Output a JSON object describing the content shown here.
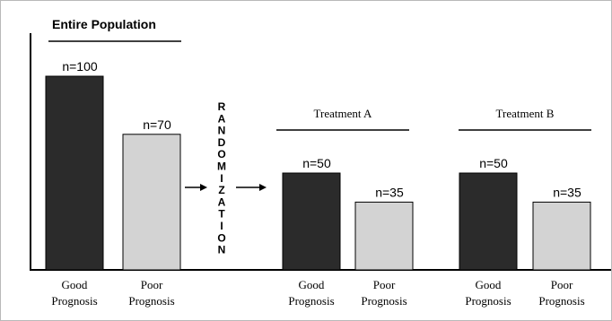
{
  "figure": {
    "groups": [
      {
        "title": "Entire Population",
        "bars": [
          {
            "category": "Good Prognosis",
            "n_label": "n=100",
            "n": 100,
            "fill": "#2b2b2b"
          },
          {
            "category": "Poor Prognosis",
            "n_label": "n=70",
            "n": 70,
            "fill": "#d3d3d3"
          }
        ]
      },
      {
        "title": "Treatment A",
        "bars": [
          {
            "category": "Good Prognosis",
            "n_label": "n=50",
            "n": 50,
            "fill": "#2b2b2b"
          },
          {
            "category": "Poor Prognosis",
            "n_label": "n=35",
            "n": 35,
            "fill": "#d3d3d3"
          }
        ]
      },
      {
        "title": "Treatment B",
        "bars": [
          {
            "category": "Good Prognosis",
            "n_label": "n=50",
            "n": 50,
            "fill": "#2b2b2b"
          },
          {
            "category": "Poor Prognosis",
            "n_label": "n=35",
            "n": 35,
            "fill": "#d3d3d3"
          }
        ]
      }
    ],
    "randomization_text": "RANDOMIZATION",
    "colors": {
      "good": "#2b2b2b",
      "poor": "#d3d3d3",
      "axis": "#000000"
    }
  }
}
